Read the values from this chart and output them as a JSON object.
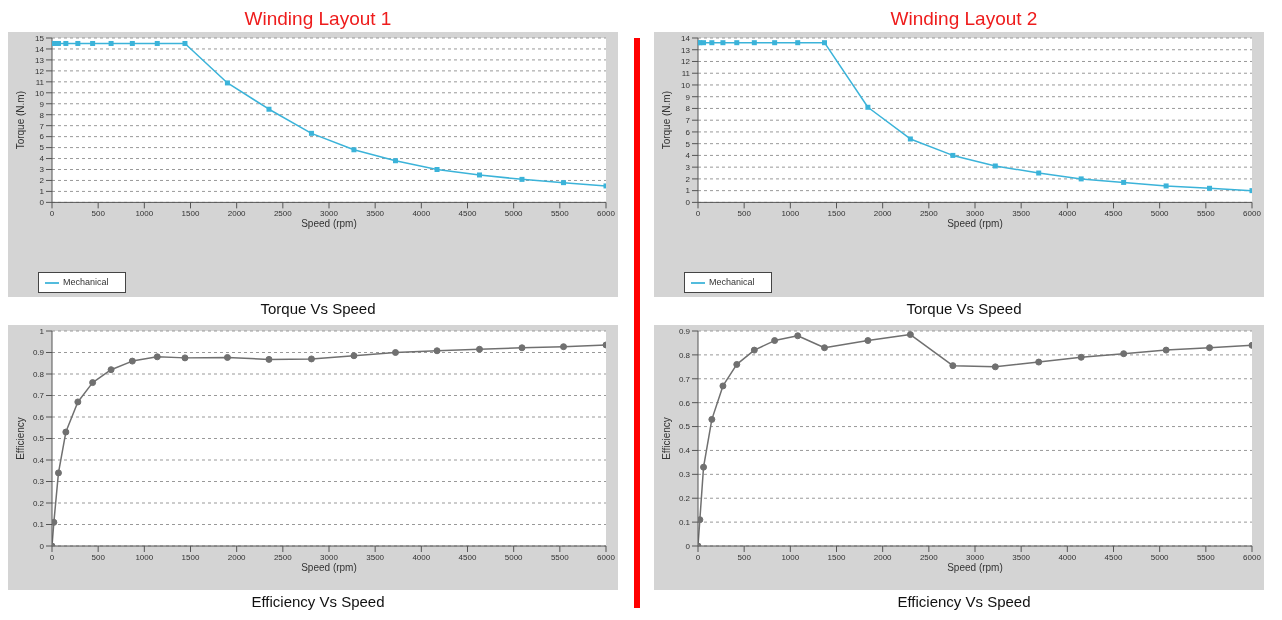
{
  "chart_data": [
    {
      "type": "line",
      "title": "Winding Layout 1",
      "xlabel": "Speed (rpm)",
      "ylabel": "Torque (N.m)",
      "annotations": [
        "Torque Vs Speed"
      ],
      "marker": "square",
      "line_style": "solid",
      "grid": "y",
      "legend": "bottom left",
      "xlim": [
        0,
        6000
      ],
      "xticks": [
        0,
        500,
        1000,
        1500,
        2000,
        2500,
        3000,
        3500,
        4000,
        4500,
        5000,
        5500,
        6000
      ],
      "ylim": [
        0,
        15
      ],
      "yticks": [
        0,
        1,
        2,
        3,
        4,
        5,
        6,
        7,
        8,
        9,
        10,
        11,
        12,
        13,
        14,
        15
      ],
      "series": [
        {
          "name": "Mechanical",
          "color": "#3bb3d9",
          "x": [
            0,
            20,
            70,
            150,
            280,
            440,
            640,
            870,
            1140,
            1440,
            1900,
            2350,
            2810,
            3270,
            3720,
            4170,
            4630,
            5090,
            5540,
            6000
          ],
          "values": [
            14.5,
            14.5,
            14.5,
            14.5,
            14.5,
            14.5,
            14.5,
            14.5,
            14.5,
            14.5,
            10.9,
            8.5,
            6.3,
            4.8,
            3.8,
            3.0,
            2.5,
            2.1,
            1.8,
            1.5
          ]
        }
      ]
    },
    {
      "type": "line",
      "title": "Winding Layout 2",
      "xlabel": "Speed (rpm)",
      "ylabel": "Torque (N.m)",
      "annotations": [
        "Torque Vs Speed"
      ],
      "marker": "square",
      "line_style": "solid",
      "grid": "y",
      "legend": "bottom left",
      "xlim": [
        0,
        6000
      ],
      "xticks": [
        0,
        500,
        1000,
        1500,
        2000,
        2500,
        3000,
        3500,
        4000,
        4500,
        5000,
        5500,
        6000
      ],
      "ylim": [
        0,
        14
      ],
      "yticks": [
        0,
        1,
        2,
        3,
        4,
        5,
        6,
        7,
        8,
        9,
        10,
        11,
        12,
        13,
        14
      ],
      "series": [
        {
          "name": "Mechanical",
          "color": "#3bb3d9",
          "x": [
            0,
            20,
            60,
            150,
            270,
            420,
            610,
            830,
            1080,
            1370,
            1840,
            2300,
            2760,
            3220,
            3690,
            4150,
            4610,
            5070,
            5540,
            6000
          ],
          "values": [
            13.6,
            13.6,
            13.6,
            13.6,
            13.6,
            13.6,
            13.6,
            13.6,
            13.6,
            13.6,
            8.1,
            5.4,
            4.0,
            3.1,
            2.5,
            2.0,
            1.7,
            1.4,
            1.2,
            1.0
          ]
        }
      ]
    },
    {
      "type": "line",
      "xlabel": "Speed (rpm)",
      "ylabel": "Efficiency",
      "annotations": [
        "Efficiency Vs Speed"
      ],
      "marker": "circle",
      "line_style": "solid",
      "grid": "y",
      "xlim": [
        0,
        6000
      ],
      "xticks": [
        0,
        500,
        1000,
        1500,
        2000,
        2500,
        3000,
        3500,
        4000,
        4500,
        5000,
        5500,
        6000
      ],
      "ylim": [
        0,
        1
      ],
      "yticks": [
        0,
        0.1,
        0.2,
        0.3,
        0.4,
        0.5,
        0.6,
        0.7,
        0.8,
        0.9,
        1
      ],
      "series": [
        {
          "color": "#707070",
          "x": [
            0,
            20,
            70,
            150,
            280,
            440,
            640,
            870,
            1140,
            1440,
            1900,
            2350,
            2810,
            3270,
            3720,
            4170,
            4630,
            5090,
            5540,
            6000
          ],
          "values": [
            0,
            0.11,
            0.34,
            0.53,
            0.67,
            0.76,
            0.82,
            0.86,
            0.88,
            0.875,
            0.877,
            0.868,
            0.87,
            0.885,
            0.9,
            0.908,
            0.915,
            0.922,
            0.927,
            0.935
          ]
        }
      ]
    },
    {
      "type": "line",
      "xlabel": "Speed (rpm)",
      "ylabel": "Efficiency",
      "annotations": [
        "Efficiency Vs Speed"
      ],
      "marker": "circle",
      "line_style": "solid",
      "grid": "y",
      "xlim": [
        0,
        6000
      ],
      "xticks": [
        0,
        500,
        1000,
        1500,
        2000,
        2500,
        3000,
        3500,
        4000,
        4500,
        5000,
        5500,
        6000
      ],
      "ylim": [
        0,
        0.9
      ],
      "yticks": [
        0,
        0.1,
        0.2,
        0.3,
        0.4,
        0.5,
        0.6,
        0.7,
        0.8,
        0.9
      ],
      "series": [
        {
          "color": "#707070",
          "x": [
            0,
            20,
            60,
            150,
            270,
            420,
            610,
            830,
            1080,
            1370,
            1840,
            2300,
            2760,
            3220,
            3690,
            4150,
            4610,
            5070,
            5540,
            6000
          ],
          "values": [
            0,
            0.11,
            0.33,
            0.53,
            0.67,
            0.76,
            0.82,
            0.86,
            0.88,
            0.83,
            0.86,
            0.885,
            0.755,
            0.75,
            0.77,
            0.79,
            0.805,
            0.82,
            0.83,
            0.84
          ]
        }
      ]
    }
  ]
}
